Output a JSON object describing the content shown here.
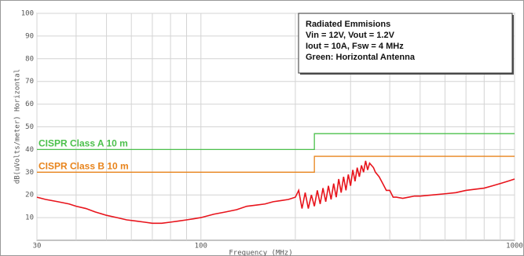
{
  "chart_data": {
    "type": "line",
    "xscale": "log",
    "xlabel": "Frequency (MHz)",
    "ylabel": "dB(uVolts/meter) Horizontal",
    "xlim": [
      30,
      1000
    ],
    "ylim": [
      0,
      100
    ],
    "xticks": [
      30,
      100,
      1000
    ],
    "xgrid": [
      40,
      50,
      60,
      70,
      80,
      90,
      200,
      300,
      400,
      500,
      600,
      700,
      800,
      900
    ],
    "yticks": [
      10,
      20,
      30,
      40,
      50,
      60,
      70,
      80,
      90,
      100
    ],
    "grid": true,
    "annotation": [
      "Radiated Emmisions",
      "Vin = 12V, Vout = 1.2V",
      "Iout = 10A, Fsw = 4 MHz",
      "Green: Horizontal Antenna"
    ],
    "series": [
      {
        "name": "Emissions",
        "color": "#e8141c",
        "label_shown": false,
        "x": [
          30,
          32,
          35,
          38,
          40,
          43,
          46,
          50,
          54,
          58,
          62,
          66,
          70,
          75,
          80,
          85,
          90,
          95,
          100,
          110,
          120,
          130,
          140,
          150,
          160,
          170,
          180,
          190,
          200,
          205,
          210,
          215,
          220,
          225,
          230,
          235,
          240,
          245,
          250,
          255,
          260,
          265,
          270,
          275,
          280,
          285,
          290,
          295,
          300,
          305,
          310,
          315,
          320,
          325,
          330,
          335,
          340,
          345,
          350,
          355,
          360,
          370,
          380,
          390,
          400,
          410,
          420,
          440,
          460,
          480,
          500,
          550,
          600,
          650,
          700,
          750,
          800,
          850,
          900,
          950,
          1000
        ],
        "values": [
          19,
          18,
          17,
          16,
          15,
          14,
          12.5,
          11,
          10,
          9,
          8.5,
          8,
          7.5,
          7.5,
          8,
          8.5,
          9,
          9.5,
          10,
          11.5,
          12.5,
          13.5,
          15,
          15.5,
          16,
          17,
          17.5,
          18,
          19,
          22,
          14,
          21,
          14,
          20,
          15,
          22,
          16,
          23,
          17,
          24,
          18,
          25,
          19,
          27,
          21,
          28,
          22,
          29,
          24,
          31,
          26,
          32,
          28,
          33,
          30,
          35,
          31,
          34,
          33,
          32,
          30,
          28,
          25,
          22,
          22,
          19,
          19,
          18.5,
          19,
          19.5,
          19.5,
          20,
          20.5,
          21,
          22,
          22.5,
          23,
          24,
          25,
          26,
          27
        ]
      },
      {
        "name": "CISPR Class A  10 m",
        "color": "#4cc04c",
        "label_shown": true,
        "x": [
          30,
          230,
          230,
          1000
        ],
        "values": [
          40,
          40,
          47,
          47
        ]
      },
      {
        "name": "CISPR Class B  10 m",
        "color": "#e8841c",
        "label_shown": true,
        "x": [
          30,
          230,
          230,
          1000
        ],
        "values": [
          30,
          30,
          37,
          37
        ]
      }
    ]
  }
}
